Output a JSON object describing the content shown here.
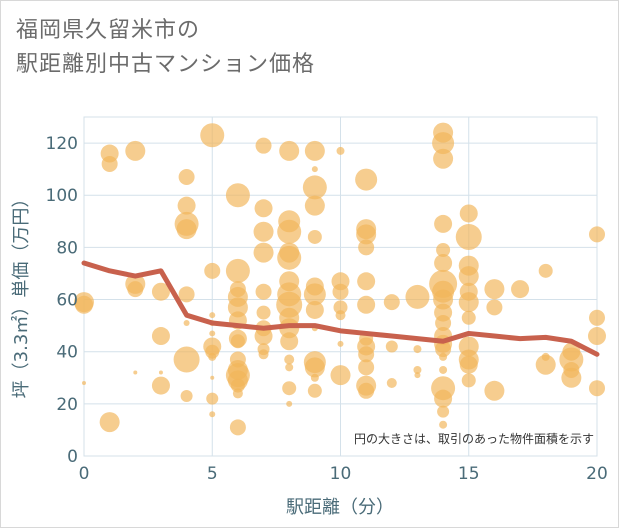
{
  "title_line1": "福岡県久留米市の",
  "title_line2": "駅距離別中古マンション価格",
  "chart_data": {
    "type": "scatter",
    "xlabel": "駅距離（分）",
    "ylabel": "坪（3.3㎡）単価（万円）",
    "xlim": [
      0,
      20
    ],
    "ylim": [
      0,
      130
    ],
    "x_ticks": [
      0,
      5,
      10,
      15,
      20
    ],
    "y_ticks": [
      0,
      20,
      40,
      60,
      80,
      100,
      120
    ],
    "grid": true,
    "note": "円の大きさは、取引のあった物件面積を示す",
    "colors": {
      "bubble": "#f2b65a",
      "line": "#c8614d",
      "grid": "#d4e1ea",
      "axis_text": "#4a6b78"
    },
    "points": [
      [
        0,
        59,
        10
      ],
      [
        0,
        58,
        9
      ],
      [
        0,
        28,
        2
      ],
      [
        1,
        116,
        9
      ],
      [
        1,
        112,
        8
      ],
      [
        1,
        13,
        10
      ],
      [
        2,
        117,
        10
      ],
      [
        2,
        66,
        10
      ],
      [
        2,
        64,
        8
      ],
      [
        2,
        32,
        2
      ],
      [
        3,
        63,
        9
      ],
      [
        3,
        46,
        9
      ],
      [
        3,
        27,
        9
      ],
      [
        3,
        32,
        2
      ],
      [
        4,
        107,
        8
      ],
      [
        4,
        96,
        9
      ],
      [
        4,
        89,
        12
      ],
      [
        4,
        87,
        10
      ],
      [
        4,
        62,
        8
      ],
      [
        4,
        51,
        3
      ],
      [
        4,
        37,
        13
      ],
      [
        4,
        23,
        6
      ],
      [
        5,
        123,
        12
      ],
      [
        5,
        71,
        8
      ],
      [
        5,
        54,
        3
      ],
      [
        5,
        51,
        3
      ],
      [
        5,
        47,
        3
      ],
      [
        5,
        42,
        9
      ],
      [
        5,
        40,
        7
      ],
      [
        5,
        38,
        4
      ],
      [
        5,
        30,
        2
      ],
      [
        5,
        22,
        6
      ],
      [
        5,
        16,
        3
      ],
      [
        6,
        100,
        12
      ],
      [
        6,
        71,
        12
      ],
      [
        6,
        64,
        8
      ],
      [
        6,
        61,
        10
      ],
      [
        6,
        57,
        10
      ],
      [
        6,
        52,
        9
      ],
      [
        6,
        45,
        9
      ],
      [
        6,
        44,
        7
      ],
      [
        6,
        37,
        8
      ],
      [
        6,
        33,
        10
      ],
      [
        6,
        31,
        12
      ],
      [
        6,
        29,
        10
      ],
      [
        6,
        27,
        7
      ],
      [
        6,
        24,
        5
      ],
      [
        6,
        11,
        8
      ],
      [
        7,
        119,
        8
      ],
      [
        7,
        95,
        9
      ],
      [
        7,
        86,
        10
      ],
      [
        7,
        78,
        10
      ],
      [
        7,
        63,
        8
      ],
      [
        7,
        55,
        7
      ],
      [
        7,
        49,
        8
      ],
      [
        7,
        46,
        9
      ],
      [
        7,
        41,
        6
      ],
      [
        7,
        39,
        5
      ],
      [
        8,
        117,
        10
      ],
      [
        8,
        90,
        11
      ],
      [
        8,
        86,
        12
      ],
      [
        8,
        78,
        10
      ],
      [
        8,
        76,
        12
      ],
      [
        8,
        67,
        10
      ],
      [
        8,
        62,
        12
      ],
      [
        8,
        58,
        13
      ],
      [
        8,
        53,
        10
      ],
      [
        8,
        49,
        10
      ],
      [
        8,
        44,
        9
      ],
      [
        8,
        37,
        5
      ],
      [
        8,
        34,
        4
      ],
      [
        8,
        26,
        7
      ],
      [
        8,
        20,
        3
      ],
      [
        9,
        117,
        10
      ],
      [
        9,
        110,
        3
      ],
      [
        9,
        103,
        12
      ],
      [
        9,
        96,
        10
      ],
      [
        9,
        84,
        7
      ],
      [
        9,
        65,
        9
      ],
      [
        9,
        62,
        11
      ],
      [
        9,
        56,
        9
      ],
      [
        9,
        49,
        3
      ],
      [
        9,
        36,
        11
      ],
      [
        9,
        34,
        10
      ],
      [
        9,
        30,
        4
      ],
      [
        9,
        25,
        7
      ],
      [
        10,
        117,
        4
      ],
      [
        10,
        67,
        9
      ],
      [
        10,
        63,
        8
      ],
      [
        10,
        57,
        7
      ],
      [
        10,
        54,
        5
      ],
      [
        10,
        31,
        10
      ],
      [
        10,
        43,
        3
      ],
      [
        11,
        106,
        11
      ],
      [
        11,
        87,
        10
      ],
      [
        11,
        85,
        10
      ],
      [
        11,
        80,
        8
      ],
      [
        11,
        67,
        9
      ],
      [
        11,
        58,
        9
      ],
      [
        11,
        45,
        7
      ],
      [
        11,
        42,
        9
      ],
      [
        11,
        39,
        8
      ],
      [
        11,
        34,
        8
      ],
      [
        11,
        27,
        10
      ],
      [
        11,
        25,
        8
      ],
      [
        12,
        59,
        8
      ],
      [
        12,
        42,
        6
      ],
      [
        12,
        28,
        5
      ],
      [
        13,
        61,
        12
      ],
      [
        13,
        41,
        4
      ],
      [
        13,
        33,
        4
      ],
      [
        13,
        31,
        3
      ],
      [
        14,
        124,
        10
      ],
      [
        14,
        114,
        10
      ],
      [
        14,
        120,
        11
      ],
      [
        14,
        89,
        9
      ],
      [
        14,
        79,
        7
      ],
      [
        14,
        74,
        9
      ],
      [
        14,
        66,
        14
      ],
      [
        14,
        63,
        11
      ],
      [
        14,
        60,
        10
      ],
      [
        14,
        55,
        9
      ],
      [
        14,
        51,
        8
      ],
      [
        14,
        46,
        9
      ],
      [
        14,
        43,
        9
      ],
      [
        14,
        41,
        8
      ],
      [
        14,
        38,
        4
      ],
      [
        14,
        33,
        4
      ],
      [
        14,
        26,
        12
      ],
      [
        14,
        22,
        9
      ],
      [
        14,
        17,
        6
      ],
      [
        14,
        12,
        4
      ],
      [
        15,
        93,
        9
      ],
      [
        15,
        84,
        13
      ],
      [
        15,
        73,
        10
      ],
      [
        15,
        69,
        10
      ],
      [
        15,
        63,
        9
      ],
      [
        15,
        59,
        10
      ],
      [
        15,
        53,
        7
      ],
      [
        15,
        42,
        10
      ],
      [
        15,
        37,
        10
      ],
      [
        15,
        35,
        9
      ],
      [
        15,
        29,
        7
      ],
      [
        16,
        64,
        10
      ],
      [
        16,
        57,
        8
      ],
      [
        16,
        25,
        10
      ],
      [
        17,
        64,
        9
      ],
      [
        18,
        71,
        7
      ],
      [
        18,
        38,
        4
      ],
      [
        18,
        35,
        10
      ],
      [
        19,
        40,
        9
      ],
      [
        19,
        37,
        12
      ],
      [
        19,
        33,
        8
      ],
      [
        19,
        30,
        10
      ],
      [
        20,
        85,
        8
      ],
      [
        20,
        53,
        8
      ],
      [
        20,
        46,
        9
      ],
      [
        20,
        26,
        8
      ]
    ],
    "line": {
      "x": [
        0,
        1,
        2,
        3,
        4,
        5,
        6,
        7,
        8,
        9,
        10,
        11,
        12,
        13,
        14,
        15,
        16,
        17,
        18,
        19,
        20
      ],
      "y": [
        74,
        71,
        69,
        71,
        54,
        51,
        50,
        49,
        50,
        50,
        48,
        47,
        46,
        45,
        44,
        47,
        46,
        45,
        45.5,
        44,
        39
      ]
    }
  }
}
